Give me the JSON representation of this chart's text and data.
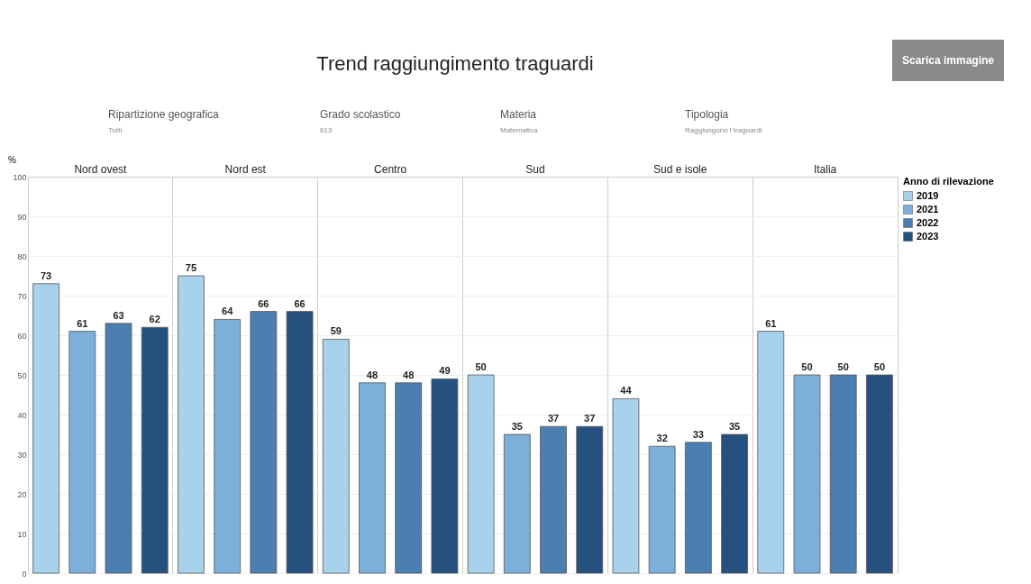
{
  "chart_data": {
    "type": "bar",
    "title": "Trend raggiungimento traguardi",
    "annotations": [
      "Scarica immagine",
      "Ripartizione geografica",
      "Tutti",
      "Grado scolastico",
      "613",
      "Materia",
      "Matematica",
      "Tipologia",
      "Raggiungono i traguardi"
    ],
    "ylabel": "%",
    "legend_title": "Anno di rilevazione",
    "categories": [
      "Nord ovest",
      "Nord est",
      "Centro",
      "Sud",
      "Sud e isole",
      "Italia"
    ],
    "series": [
      {
        "name": "2019",
        "color": "#a8d1ec",
        "values": [
          73,
          75,
          59,
          50,
          44,
          61
        ]
      },
      {
        "name": "2021",
        "color": "#7cb0da",
        "values": [
          61,
          64,
          48,
          35,
          32,
          50
        ]
      },
      {
        "name": "2022",
        "color": "#4b7fb1",
        "values": [
          63,
          66,
          48,
          37,
          33,
          50
        ]
      },
      {
        "name": "2023",
        "color": "#26517e",
        "values": [
          62,
          66,
          49,
          37,
          35,
          50
        ]
      }
    ],
    "ylim": [
      0,
      100
    ],
    "yticks": [
      0,
      10,
      20,
      30,
      40,
      50,
      60,
      70,
      80,
      90,
      100
    ],
    "grid": true,
    "legend": "right",
    "data_labels": true
  }
}
